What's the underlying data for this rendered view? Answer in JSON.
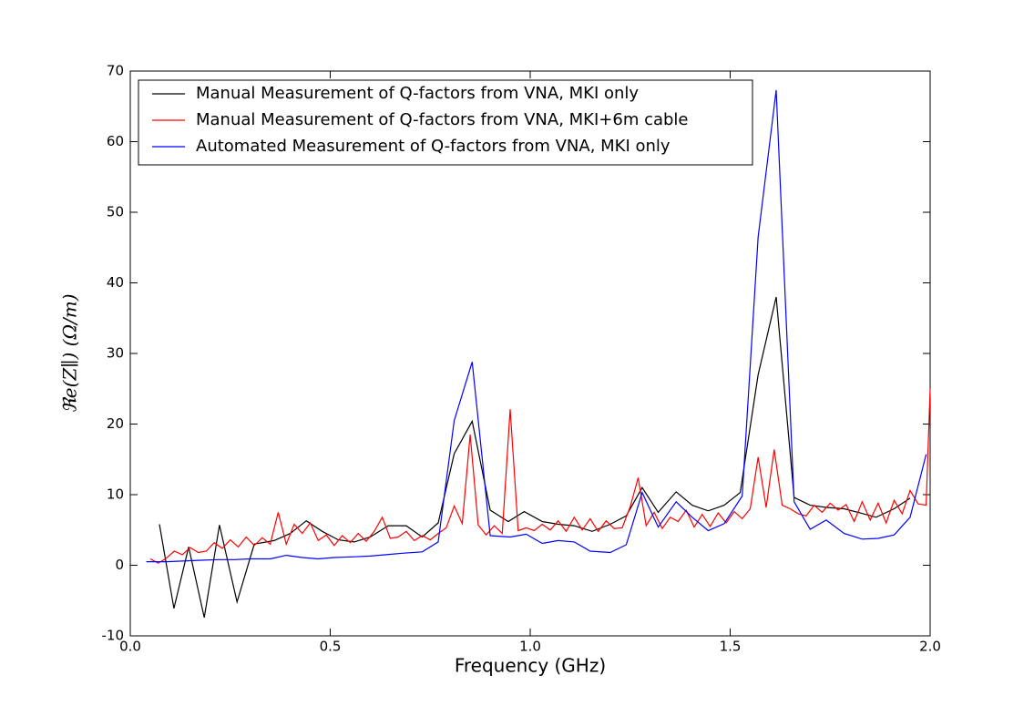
{
  "chart_data": {
    "type": "line",
    "xlabel": "Frequency (GHz)",
    "ylabel": "ℜe(Z∥) (Ω/m)",
    "xlim": [
      0,
      2.0
    ],
    "ylim": [
      -10,
      70
    ],
    "xticks": [
      {
        "value": 0,
        "label": "0.0"
      },
      {
        "value": 0.5,
        "label": "0.5"
      },
      {
        "value": 1,
        "label": "1.0"
      },
      {
        "value": 1.5,
        "label": "1.5"
      },
      {
        "value": 2,
        "label": "2.0"
      }
    ],
    "yticks": [
      -10,
      0,
      10,
      20,
      30,
      40,
      50,
      60,
      70
    ],
    "grid": false,
    "legend": "upper left",
    "series": [
      {
        "name": "Manual Measurement of Q-factors from VNA, MKI only",
        "color": "#000000",
        "x": [
          0.073,
          0.109,
          0.146,
          0.185,
          0.223,
          0.267,
          0.31,
          0.36,
          0.4,
          0.44,
          0.48,
          0.52,
          0.56,
          0.6,
          0.645,
          0.69,
          0.73,
          0.77,
          0.81,
          0.855,
          0.9,
          0.945,
          0.985,
          1.03,
          1.07,
          1.11,
          1.155,
          1.2,
          1.24,
          1.28,
          1.32,
          1.365,
          1.405,
          1.445,
          1.485,
          1.525,
          1.57,
          1.615,
          1.66,
          1.7,
          1.74,
          1.785,
          1.825,
          1.865,
          1.91,
          1.95
        ],
        "values": [
          5.8,
          -6.1,
          2.6,
          -7.4,
          5.7,
          -5.2,
          3.0,
          3.5,
          4.5,
          6.3,
          4.8,
          3.6,
          3.3,
          4.0,
          5.6,
          5.6,
          4.0,
          6.0,
          15.8,
          20.4,
          7.8,
          6.2,
          7.6,
          6.2,
          5.8,
          5.6,
          4.8,
          5.8,
          7.0,
          11.0,
          7.5,
          10.4,
          8.5,
          7.7,
          8.5,
          10.3,
          27.0,
          38.0,
          9.6,
          8.5,
          8.2,
          8.0,
          7.4,
          6.8,
          8.0,
          9.5
        ]
      },
      {
        "name": "Manual Measurement of Q-factors from VNA, MKI+6m cable",
        "color": "#ff0000",
        "x": [
          0.05,
          0.07,
          0.09,
          0.11,
          0.13,
          0.15,
          0.17,
          0.19,
          0.21,
          0.23,
          0.25,
          0.27,
          0.29,
          0.31,
          0.33,
          0.35,
          0.37,
          0.39,
          0.41,
          0.43,
          0.45,
          0.47,
          0.49,
          0.51,
          0.53,
          0.55,
          0.57,
          0.59,
          0.61,
          0.63,
          0.65,
          0.67,
          0.69,
          0.71,
          0.73,
          0.75,
          0.77,
          0.79,
          0.81,
          0.83,
          0.85,
          0.87,
          0.89,
          0.91,
          0.93,
          0.95,
          0.97,
          0.99,
          1.01,
          1.03,
          1.05,
          1.07,
          1.09,
          1.11,
          1.13,
          1.15,
          1.17,
          1.19,
          1.21,
          1.23,
          1.25,
          1.27,
          1.29,
          1.31,
          1.33,
          1.35,
          1.37,
          1.39,
          1.41,
          1.43,
          1.45,
          1.47,
          1.49,
          1.51,
          1.53,
          1.55,
          1.57,
          1.59,
          1.61,
          1.63,
          1.65,
          1.67,
          1.69,
          1.71,
          1.73,
          1.75,
          1.77,
          1.79,
          1.81,
          1.83,
          1.85,
          1.87,
          1.89,
          1.91,
          1.93,
          1.95,
          1.97,
          1.99,
          2.0
        ],
        "values": [
          0.9,
          0.3,
          1.0,
          2.0,
          1.5,
          2.5,
          1.8,
          2.0,
          3.2,
          2.4,
          3.6,
          2.6,
          4.0,
          2.8,
          3.9,
          3.0,
          7.5,
          3.0,
          5.8,
          4.5,
          6.0,
          3.5,
          4.3,
          2.8,
          4.2,
          3.2,
          4.5,
          3.4,
          4.8,
          6.8,
          3.8,
          4.0,
          4.8,
          3.5,
          4.2,
          3.6,
          4.5,
          5.3,
          8.4,
          5.9,
          18.5,
          5.7,
          4.3,
          5.6,
          4.5,
          22.1,
          4.9,
          5.3,
          4.9,
          5.8,
          5.0,
          6.3,
          4.8,
          6.8,
          5.0,
          6.6,
          4.8,
          6.3,
          5.2,
          5.3,
          8.3,
          12.4,
          5.6,
          7.5,
          5.2,
          6.8,
          6.2,
          7.8,
          5.4,
          7.2,
          5.5,
          7.4,
          6.0,
          7.6,
          6.6,
          8.0,
          15.3,
          8.2,
          16.4,
          8.5,
          8.0,
          7.3,
          7.0,
          8.5,
          7.5,
          8.8,
          7.8,
          8.6,
          6.2,
          9.0,
          6.4,
          8.8,
          6.0,
          9.2,
          7.3,
          10.6,
          8.7,
          8.5,
          25.0
        ]
      },
      {
        "name": "Automated Measurement of Q-factors from VNA, MKI only",
        "color": "#0000ff",
        "x": [
          0.04,
          0.09,
          0.13,
          0.17,
          0.22,
          0.26,
          0.3,
          0.35,
          0.39,
          0.43,
          0.47,
          0.51,
          0.56,
          0.6,
          0.64,
          0.68,
          0.73,
          0.77,
          0.81,
          0.855,
          0.9,
          0.95,
          0.99,
          1.03,
          1.07,
          1.11,
          1.15,
          1.2,
          1.24,
          1.28,
          1.32,
          1.365,
          1.405,
          1.445,
          1.485,
          1.53,
          1.57,
          1.615,
          1.66,
          1.7,
          1.74,
          1.785,
          1.83,
          1.87,
          1.91,
          1.95,
          1.99
        ],
        "values": [
          0.5,
          0.5,
          0.6,
          0.7,
          0.8,
          0.8,
          0.9,
          0.9,
          1.4,
          1.1,
          0.9,
          1.1,
          1.2,
          1.3,
          1.5,
          1.7,
          1.9,
          3.3,
          20.5,
          28.8,
          4.2,
          4.0,
          4.4,
          3.1,
          3.5,
          3.3,
          2.0,
          1.8,
          2.9,
          10.3,
          5.4,
          9.0,
          6.8,
          4.9,
          5.9,
          9.8,
          46.5,
          67.3,
          9.0,
          5.1,
          6.4,
          4.5,
          3.7,
          3.8,
          4.3,
          6.8,
          15.7
        ]
      }
    ]
  }
}
